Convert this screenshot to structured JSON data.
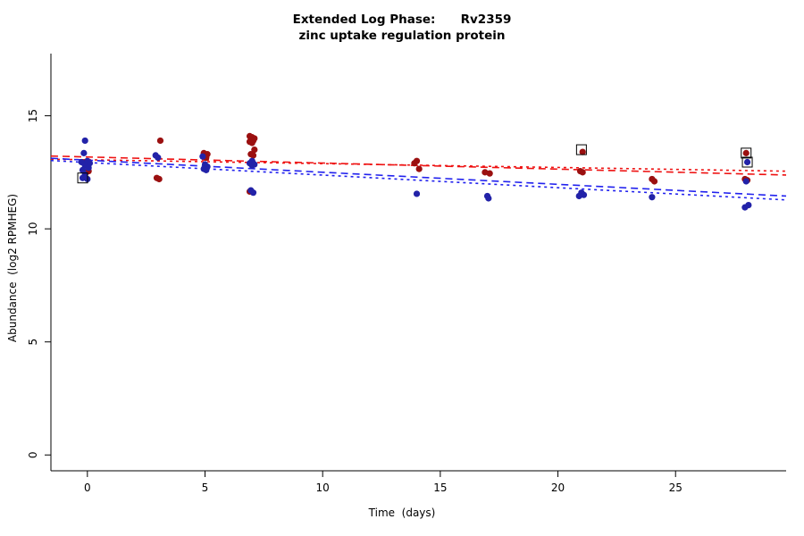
{
  "figure": {
    "title": "Extended Log Phase:      Rv2359",
    "subtitle": "zinc uptake regulation protein",
    "xlabel": "Time  (days)",
    "ylabel": "Abundance  (log2 RPMHEG)"
  },
  "chart_data": {
    "type": "scatter",
    "title": "Extended Log Phase:      Rv2359",
    "subtitle": "zinc uptake regulation protein",
    "xlabel": "Time  (days)",
    "ylabel": "Abundance  (log2 RPMHEG)",
    "xlim": [
      -1.55,
      29.7
    ],
    "ylim": [
      -0.7,
      17.75
    ],
    "xticks": [
      0,
      5,
      10,
      15,
      20,
      25
    ],
    "yticks": [
      0,
      5,
      10,
      15
    ],
    "grid": false,
    "colors": {
      "red_point": "#9b1010",
      "blue_point": "#2222a8",
      "red_line": "#ee1111",
      "blue_line": "#2222ee",
      "flag_square": "#000000"
    },
    "series": [
      {
        "name": "red-points",
        "color_key": "red_point",
        "points": [
          [
            -0.05,
            12.95
          ],
          [
            0.05,
            12.55
          ],
          [
            3.1,
            13.9
          ],
          [
            2.95,
            12.25
          ],
          [
            3.05,
            12.2
          ],
          [
            4.95,
            13.35
          ],
          [
            5.1,
            13.3
          ],
          [
            5.0,
            13.2
          ],
          [
            5.05,
            13.15
          ],
          [
            6.9,
            14.1
          ],
          [
            7.0,
            14.05
          ],
          [
            7.1,
            14.0
          ],
          [
            6.95,
            13.95
          ],
          [
            7.05,
            13.9
          ],
          [
            6.9,
            13.85
          ],
          [
            7.0,
            13.8
          ],
          [
            7.1,
            13.5
          ],
          [
            6.95,
            13.3
          ],
          [
            7.05,
            13.25
          ],
          [
            6.9,
            11.65
          ],
          [
            14.0,
            13.0
          ],
          [
            13.9,
            12.9
          ],
          [
            14.1,
            12.65
          ],
          [
            16.9,
            12.5
          ],
          [
            17.1,
            12.45
          ],
          [
            21.05,
            13.4
          ],
          [
            20.95,
            12.55
          ],
          [
            21.05,
            12.5
          ],
          [
            24.0,
            12.2
          ],
          [
            24.1,
            12.1
          ],
          [
            28.0,
            13.35
          ],
          [
            27.95,
            12.2
          ],
          [
            28.05,
            12.15
          ]
        ]
      },
      {
        "name": "blue-points",
        "color_key": "blue_point",
        "points": [
          [
            -0.1,
            13.9
          ],
          [
            -0.15,
            13.35
          ],
          [
            0.0,
            13.0
          ],
          [
            -0.25,
            12.95
          ],
          [
            0.1,
            12.9
          ],
          [
            -0.1,
            12.8
          ],
          [
            0.05,
            12.7
          ],
          [
            -0.2,
            12.6
          ],
          [
            -0.1,
            12.4
          ],
          [
            -0.2,
            12.25
          ],
          [
            0.0,
            12.2
          ],
          [
            2.9,
            13.25
          ],
          [
            3.0,
            13.15
          ],
          [
            4.9,
            13.2
          ],
          [
            5.0,
            12.85
          ],
          [
            5.1,
            12.75
          ],
          [
            4.95,
            12.65
          ],
          [
            5.05,
            12.6
          ],
          [
            7.0,
            13.0
          ],
          [
            6.9,
            12.9
          ],
          [
            7.1,
            12.85
          ],
          [
            7.0,
            12.8
          ],
          [
            6.95,
            11.7
          ],
          [
            7.05,
            11.6
          ],
          [
            14.0,
            11.55
          ],
          [
            17.0,
            11.45
          ],
          [
            17.05,
            11.35
          ],
          [
            21.0,
            11.6
          ],
          [
            21.1,
            11.5
          ],
          [
            20.9,
            11.45
          ],
          [
            24.0,
            11.4
          ],
          [
            28.05,
            12.95
          ],
          [
            28.0,
            12.1
          ],
          [
            28.1,
            11.05
          ],
          [
            27.95,
            10.95
          ]
        ]
      }
    ],
    "flagged_points": [
      [
        -0.2,
        12.25
      ],
      [
        21.0,
        13.5
      ],
      [
        28.0,
        13.35
      ],
      [
        28.05,
        12.95
      ]
    ],
    "flagged_point_colors": [
      "blue_point",
      "red_point",
      "red_point",
      "blue_point"
    ],
    "trend_lines": [
      {
        "name": "red-trend-longdash",
        "color_key": "red_line",
        "dash": "8 5",
        "x1": -1.55,
        "y1": 13.22,
        "x2": 29.7,
        "y2": 12.38
      },
      {
        "name": "red-trend-shortdash",
        "color_key": "red_line",
        "dash": "3 4",
        "x1": -1.55,
        "y1": 13.08,
        "x2": 29.7,
        "y2": 12.55
      },
      {
        "name": "blue-trend-longdash",
        "color_key": "blue_line",
        "dash": "8 5",
        "x1": -1.55,
        "y1": 13.12,
        "x2": 29.7,
        "y2": 11.45
      },
      {
        "name": "blue-trend-shortdash",
        "color_key": "blue_line",
        "dash": "3 4",
        "x1": -1.55,
        "y1": 13.02,
        "x2": 29.7,
        "y2": 11.28
      }
    ],
    "legend_position": "none"
  }
}
